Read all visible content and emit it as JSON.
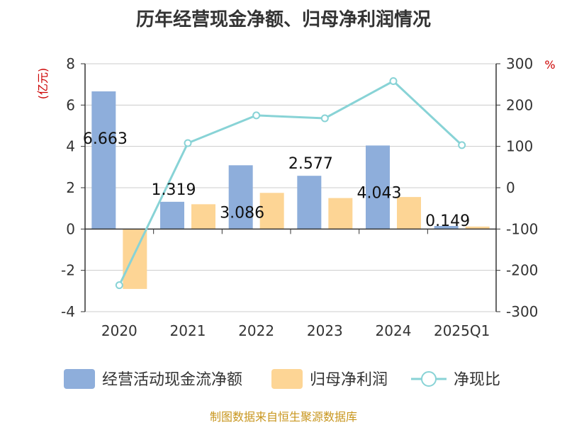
{
  "title": "历年经营现金净额、归母净利润情况",
  "source": "制图数据来自恒生聚源数据库",
  "chart_data": {
    "type": "bar",
    "title": "历年经营现金净额、归母净利润情况",
    "categories": [
      "2020",
      "2021",
      "2022",
      "2023",
      "2024",
      "2025Q1"
    ],
    "left_axis": {
      "unit": "(亿元)",
      "ylim": [
        -4,
        8
      ],
      "ticks": [
        "-4",
        "-2",
        "0",
        "2",
        "4",
        "6",
        "8"
      ]
    },
    "right_axis": {
      "unit": "%",
      "ylim": [
        -300,
        300
      ],
      "ticks": [
        "-300",
        "-200",
        "-100",
        "0",
        "100",
        "200",
        "300"
      ]
    },
    "grid": true,
    "legend_position": "bottom",
    "series": [
      {
        "name": "经营活动现金流净额",
        "kind": "bar",
        "axis": "left",
        "color": "#8eaedb",
        "values": [
          6.663,
          1.319,
          3.086,
          2.577,
          4.043,
          0.149
        ],
        "labels": [
          "6.663",
          "1.319",
          "3.086",
          "2.577",
          "4.043",
          "0.149"
        ]
      },
      {
        "name": "归母净利润",
        "kind": "bar",
        "axis": "left",
        "color": "#fdd595",
        "values": [
          -2.9,
          1.2,
          1.75,
          1.5,
          1.55,
          0.12
        ]
      },
      {
        "name": "净现比",
        "kind": "line",
        "axis": "right",
        "color": "#88d3d6",
        "values": [
          -236,
          108,
          175,
          168,
          258,
          103
        ]
      }
    ]
  }
}
